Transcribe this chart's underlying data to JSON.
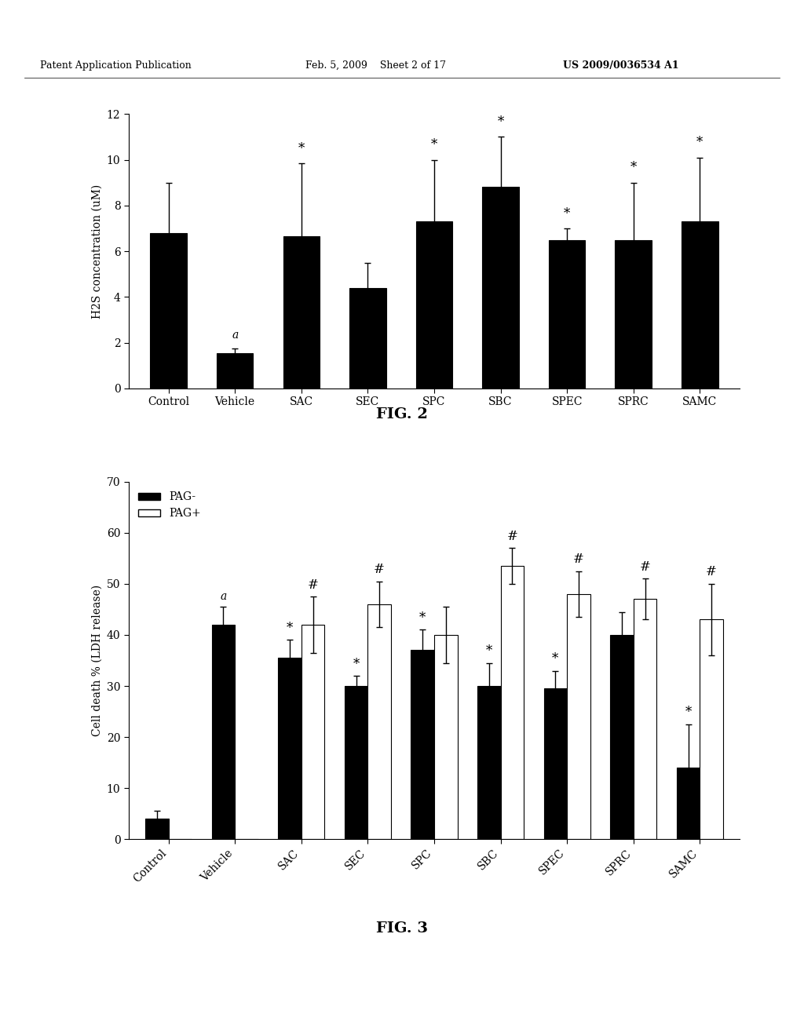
{
  "header_left": "Patent Application Publication",
  "header_mid": "Feb. 5, 2009    Sheet 2 of 17",
  "header_right": "US 2009/0036534 A1",
  "fig2": {
    "categories": [
      "Control",
      "Vehicle",
      "SAC",
      "SEC",
      "SPC",
      "SBC",
      "SPEC",
      "SPRC",
      "SAMC"
    ],
    "values": [
      6.8,
      1.55,
      6.65,
      4.4,
      7.3,
      8.8,
      6.5,
      6.5,
      7.3
    ],
    "errors": [
      2.2,
      0.2,
      3.2,
      1.1,
      2.7,
      2.2,
      0.5,
      2.5,
      2.8
    ],
    "ylabel": "H2S concentration (uM)",
    "ylim": [
      0,
      12
    ],
    "yticks": [
      0,
      2,
      4,
      6,
      8,
      10,
      12
    ],
    "annotations": {
      "Vehicle": "a",
      "SAC": "*",
      "SPC": "*",
      "SBC": "*",
      "SPEC": "*",
      "SPRC": "*",
      "SAMC": "*"
    },
    "fig_label": "FIG. 2"
  },
  "fig3": {
    "categories": [
      "Control",
      "Vehicle",
      "SAC",
      "SEC",
      "SPC",
      "SBC",
      "SPEC",
      "SPRC",
      "SAMC"
    ],
    "values_pag_minus": [
      4.0,
      42.0,
      35.5,
      30.0,
      37.0,
      30.0,
      29.5,
      40.0,
      14.0
    ],
    "errors_pag_minus": [
      1.5,
      3.5,
      3.5,
      2.0,
      4.0,
      4.5,
      3.5,
      4.5,
      8.5
    ],
    "values_pag_plus": [
      0,
      0,
      42.0,
      46.0,
      40.0,
      53.5,
      48.0,
      47.0,
      43.0
    ],
    "errors_pag_plus": [
      0,
      0,
      5.5,
      4.5,
      5.5,
      3.5,
      4.5,
      4.0,
      7.0
    ],
    "ylabel": "Cell death % (LDH release)",
    "ylim": [
      0,
      70
    ],
    "yticks": [
      0,
      10,
      20,
      30,
      40,
      50,
      60,
      70
    ],
    "annotations_minus": {
      "Vehicle": "a",
      "SAC": "*",
      "SEC": "*",
      "SPC": "*",
      "SBC": "*",
      "SPEC": "*",
      "SAMC": "*"
    },
    "annotations_plus": {
      "SAC": "#",
      "SEC": "#",
      "SBC": "#",
      "SPEC": "#",
      "SPRC": "#",
      "SAMC": "#"
    },
    "fig_label": "FIG. 3",
    "legend": [
      "PAG-",
      "PAG+"
    ]
  },
  "bg_color": "#ffffff",
  "bar_color_black": "#000000",
  "bar_color_white": "#ffffff",
  "bar_edgecolor": "#000000",
  "bar_width": 0.35
}
